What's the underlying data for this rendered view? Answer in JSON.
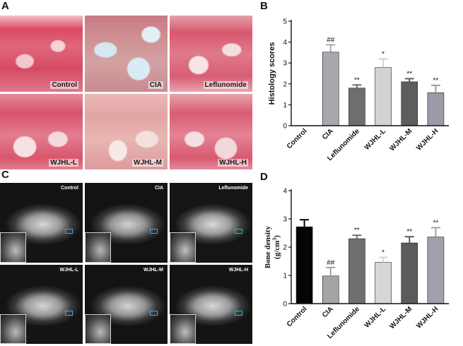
{
  "panels": {
    "a": {
      "letter": "A",
      "tiles": [
        "Control",
        "CIA",
        "Leflunomide",
        "WJHL-L",
        "WJHL-M",
        "WJHL-H"
      ]
    },
    "b": {
      "letter": "B"
    },
    "c": {
      "letter": "C",
      "tiles": [
        "Control",
        "CIA",
        "Leflunomide",
        "WJHL-L",
        "WJHL-M",
        "WJHL-H"
      ]
    },
    "d": {
      "letter": "D"
    }
  },
  "chart_data": [
    {
      "panel": "B",
      "type": "bar",
      "title": "",
      "xlabel": "",
      "ylabel": "Histology scores",
      "ylim": [
        0,
        5
      ],
      "yticks": [
        0,
        1,
        2,
        3,
        4,
        5
      ],
      "categories": [
        "Control",
        "CIA",
        "Leflunomide",
        "WJHL-L",
        "WJHL-M",
        "WJHL-H"
      ],
      "values": [
        0,
        3.52,
        1.8,
        2.78,
        2.1,
        1.58
      ],
      "errors": [
        0,
        0.35,
        0.15,
        0.42,
        0.15,
        0.35
      ],
      "significance": [
        "",
        "##",
        "**",
        "*",
        "**",
        "**"
      ],
      "colors": [
        "#2b2b2b",
        "#a7a8b0",
        "#6e6e70",
        "#d3d3d3",
        "#5d5d5f",
        "#9c9aa6"
      ]
    },
    {
      "panel": "D",
      "type": "bar",
      "title": "",
      "xlabel": "",
      "ylabel": "Bone density",
      "ylabel_unit": "(g/cm",
      "ylabel_unit_sup": "3",
      "ylabel_unit_close": ")",
      "ylim": [
        0,
        4
      ],
      "yticks": [
        0,
        1,
        2,
        3,
        4
      ],
      "categories": [
        "Control",
        "CIA",
        "Leflunomide",
        "WJHL-L",
        "WJHL-M",
        "WJHL-H"
      ],
      "values": [
        2.72,
        0.98,
        2.3,
        1.46,
        2.15,
        2.36
      ],
      "errors": [
        0.25,
        0.3,
        0.12,
        0.18,
        0.22,
        0.33
      ],
      "significance": [
        "",
        "##",
        "**",
        "*",
        "**",
        "**"
      ],
      "colors": [
        "#050505",
        "#a4a4a6",
        "#6f6f71",
        "#d6d6d6",
        "#5b5b5d",
        "#a2a0ab"
      ]
    }
  ]
}
